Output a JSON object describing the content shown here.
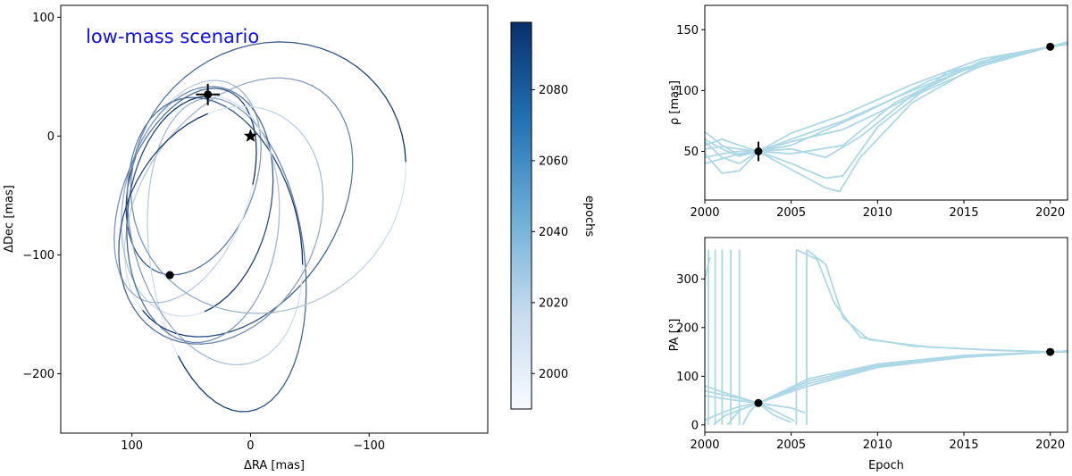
{
  "chart_data": [
    {
      "type": "line",
      "panel": "sky-plane-orbits",
      "annotation": "low-mass scenario",
      "xlabel": "ΔRA [mas]",
      "ylabel": "ΔDec [mas]",
      "xlim": [
        160,
        -200
      ],
      "ylim": [
        -250,
        110
      ],
      "xticks": [
        100,
        0,
        -100
      ],
      "xtick_labels": [
        "100",
        "0",
        "−100"
      ],
      "yticks": [
        100,
        0,
        -100,
        -200
      ],
      "ytick_labels": [
        "100",
        "0",
        "−100",
        "−200"
      ],
      "star": {
        "x": 0,
        "y": 0
      },
      "observations": [
        {
          "x": 36,
          "y": 35,
          "xerr": 10,
          "yerr": 9
        },
        {
          "x": 68,
          "y": -117
        }
      ],
      "orbits": [
        {
          "cx": 48,
          "cy": -35,
          "a": 52,
          "b": 85,
          "rot": 20
        },
        {
          "cx": 20,
          "cy": -100,
          "a": 65,
          "b": 133,
          "rot": -8
        },
        {
          "cx": 10,
          "cy": -60,
          "a": 82,
          "b": 120,
          "rot": 35
        },
        {
          "cx": 45,
          "cy": -55,
          "a": 62,
          "b": 98,
          "rot": 12
        },
        {
          "cx": 30,
          "cy": -80,
          "a": 70,
          "b": 115,
          "rot": -15
        },
        {
          "cx": 55,
          "cy": -50,
          "a": 52,
          "b": 95,
          "rot": 22
        },
        {
          "cx": -15,
          "cy": -35,
          "a": 110,
          "b": 120,
          "rot": 50
        },
        {
          "cx": 40,
          "cy": -70,
          "a": 64,
          "b": 104,
          "rot": 5
        },
        {
          "cx": 25,
          "cy": -75,
          "a": 80,
          "b": 105,
          "rot": 28
        }
      ],
      "colorbar": {
        "label": "epochs",
        "min": 1990,
        "max": 2099,
        "ticks": [
          2000,
          2020,
          2040,
          2060,
          2080
        ],
        "colormap": [
          "#f7fbff",
          "#c6dbef",
          "#6baed6",
          "#2171b5",
          "#08306b"
        ]
      },
      "line_color_range": [
        "#deebf7",
        "#08306b"
      ]
    },
    {
      "type": "line",
      "panel": "separation-vs-epoch",
      "ylabel": "ρ [mas]",
      "xlim": [
        2000,
        2021
      ],
      "ylim": [
        10,
        170
      ],
      "xticks": [
        2000,
        2005,
        2010,
        2015,
        2020
      ],
      "yticks": [
        50,
        100,
        150
      ],
      "line_color": "#add8e6",
      "observations": [
        {
          "x": 2003.1,
          "y": 50,
          "yerr": 8
        },
        {
          "x": 2020.0,
          "y": 136,
          "yerr": 0
        }
      ],
      "series": [
        [
          [
            2000,
            66
          ],
          [
            2001,
            55
          ],
          [
            2002,
            47
          ],
          [
            2003.1,
            50
          ],
          [
            2005,
            65
          ],
          [
            2008,
            80
          ],
          [
            2012,
            105
          ],
          [
            2016,
            126
          ],
          [
            2020,
            136
          ],
          [
            2021,
            140
          ]
        ],
        [
          [
            2000,
            58
          ],
          [
            2001,
            45
          ],
          [
            2002,
            40
          ],
          [
            2003.1,
            50
          ],
          [
            2005,
            60
          ],
          [
            2008,
            75
          ],
          [
            2012,
            100
          ],
          [
            2016,
            122
          ],
          [
            2020,
            136
          ],
          [
            2021,
            139
          ]
        ],
        [
          [
            2000,
            48
          ],
          [
            2001,
            32
          ],
          [
            2002,
            34
          ],
          [
            2003.1,
            50
          ],
          [
            2005,
            58
          ],
          [
            2008,
            68
          ],
          [
            2012,
            95
          ],
          [
            2016,
            120
          ],
          [
            2020,
            136
          ],
          [
            2021,
            139
          ]
        ],
        [
          [
            2000,
            40
          ],
          [
            2001,
            44
          ],
          [
            2002,
            48
          ],
          [
            2003.1,
            50
          ],
          [
            2005,
            55
          ],
          [
            2009,
            80
          ],
          [
            2013,
            108
          ],
          [
            2017,
            128
          ],
          [
            2020,
            136
          ],
          [
            2021,
            139
          ]
        ],
        [
          [
            2000,
            52
          ],
          [
            2001,
            54
          ],
          [
            2002,
            52
          ],
          [
            2003.1,
            50
          ],
          [
            2005,
            40
          ],
          [
            2007,
            28
          ],
          [
            2008,
            30
          ],
          [
            2010,
            70
          ],
          [
            2014,
            115
          ],
          [
            2020,
            136
          ],
          [
            2021,
            138
          ]
        ],
        [
          [
            2000,
            45
          ],
          [
            2001,
            48
          ],
          [
            2002,
            50
          ],
          [
            2003.1,
            50
          ],
          [
            2005,
            35
          ],
          [
            2007,
            20
          ],
          [
            2007.8,
            17
          ],
          [
            2009,
            45
          ],
          [
            2012,
            90
          ],
          [
            2016,
            122
          ],
          [
            2020,
            136
          ],
          [
            2021,
            138
          ]
        ],
        [
          [
            2000,
            60
          ],
          [
            2001,
            52
          ],
          [
            2002,
            46
          ],
          [
            2003.1,
            50
          ],
          [
            2005,
            52
          ],
          [
            2007,
            45
          ],
          [
            2009,
            62
          ],
          [
            2012,
            96
          ],
          [
            2016,
            124
          ],
          [
            2020,
            136
          ],
          [
            2021,
            139
          ]
        ],
        [
          [
            2000,
            55
          ],
          [
            2001,
            60
          ],
          [
            2002,
            55
          ],
          [
            2003.1,
            50
          ],
          [
            2005,
            48
          ],
          [
            2008,
            55
          ],
          [
            2011,
            90
          ],
          [
            2015,
            118
          ],
          [
            2020,
            136
          ],
          [
            2021,
            139
          ]
        ]
      ]
    },
    {
      "type": "line",
      "panel": "position-angle-vs-epoch",
      "ylabel": "PA [°]",
      "xlabel": "Epoch",
      "xlim": [
        2000,
        2021
      ],
      "ylim": [
        -15,
        385
      ],
      "xticks": [
        2000,
        2005,
        2010,
        2015,
        2020
      ],
      "yticks": [
        0,
        100,
        200,
        300
      ],
      "line_color": "#add8e6",
      "observations": [
        {
          "x": 2003.1,
          "y": 45,
          "yerr": 0
        },
        {
          "x": 2020.0,
          "y": 150,
          "yerr": 0
        }
      ],
      "series": [
        [
          [
            2000,
            80
          ],
          [
            2001.5,
            62
          ],
          [
            2003.1,
            45
          ],
          [
            2004,
            20
          ],
          [
            2005,
            5
          ]
        ],
        [
          [
            2000,
            70
          ],
          [
            2002,
            55
          ],
          [
            2003.1,
            45
          ],
          [
            2004,
            30
          ],
          [
            2005.2,
            8
          ]
        ],
        [
          [
            2000,
            60
          ],
          [
            2001.5,
            52
          ],
          [
            2003.1,
            45
          ],
          [
            2005,
            35
          ],
          [
            2005.8,
            25
          ]
        ],
        [
          [
            2000,
            10
          ],
          [
            2001,
            25
          ],
          [
            2002,
            38
          ],
          [
            2003.1,
            45
          ],
          [
            2006,
            85
          ],
          [
            2010,
            120
          ],
          [
            2015,
            140
          ],
          [
            2020,
            150
          ],
          [
            2021,
            152
          ]
        ],
        [
          [
            2000.5,
            0
          ],
          [
            2001.2,
            20
          ],
          [
            2003.1,
            45
          ],
          [
            2006,
            90
          ],
          [
            2010,
            122
          ],
          [
            2015,
            141
          ],
          [
            2020,
            150
          ],
          [
            2021,
            152
          ]
        ],
        [
          [
            2001.3,
            0
          ],
          [
            2002,
            30
          ],
          [
            2003.1,
            45
          ],
          [
            2006,
            80
          ],
          [
            2010,
            118
          ],
          [
            2015,
            139
          ],
          [
            2020,
            150
          ],
          [
            2021,
            152
          ]
        ],
        [
          [
            2002.2,
            0
          ],
          [
            2002.6,
            28
          ],
          [
            2003.1,
            45
          ],
          [
            2006,
            95
          ],
          [
            2010,
            125
          ],
          [
            2015,
            143
          ],
          [
            2020,
            150
          ],
          [
            2021,
            152
          ]
        ]
      ],
      "wraps": [
        {
          "x": 2000.2,
          "from": 0,
          "to": 360
        },
        {
          "x": 2000.6,
          "from": 0,
          "to": 360
        },
        {
          "x": 2001.0,
          "from": 0,
          "to": 360
        },
        {
          "x": 2001.5,
          "from": 0,
          "to": 360
        },
        {
          "x": 2002.0,
          "from": 0,
          "to": 360
        },
        {
          "x": 2005.3,
          "from": 0,
          "to": 360
        },
        {
          "x": 2005.9,
          "from": 0,
          "to": 360
        }
      ],
      "wrap_descents": [
        [
          [
            2000,
            300
          ],
          [
            2000.3,
            345
          ]
        ],
        [
          [
            2005.3,
            360
          ],
          [
            2006.5,
            340
          ],
          [
            2007.5,
            250
          ],
          [
            2009,
            180
          ],
          [
            2012,
            162
          ],
          [
            2016,
            155
          ],
          [
            2020,
            150
          ],
          [
            2021,
            150
          ]
        ],
        [
          [
            2005.9,
            360
          ],
          [
            2007,
            330
          ],
          [
            2008,
            220
          ],
          [
            2009.5,
            175
          ],
          [
            2013,
            160
          ],
          [
            2017,
            153
          ],
          [
            2020,
            150
          ],
          [
            2021,
            150
          ]
        ]
      ]
    }
  ]
}
